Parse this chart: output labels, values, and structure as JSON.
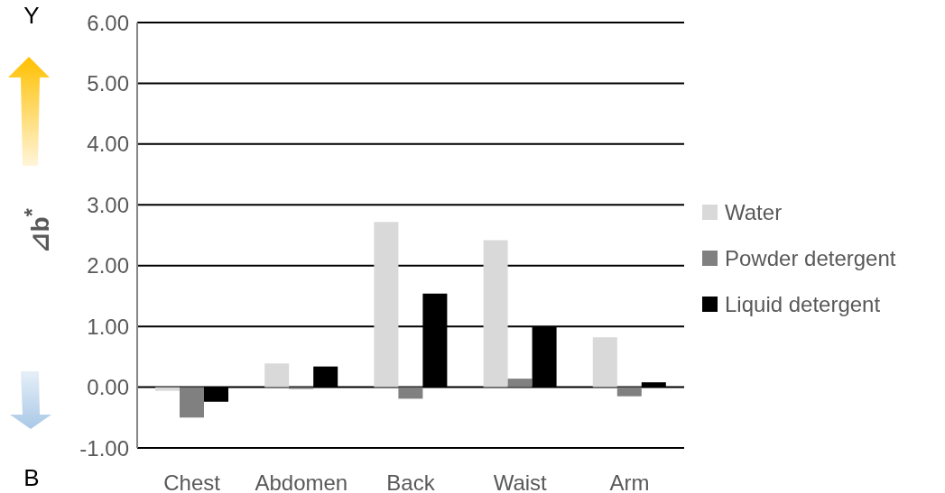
{
  "chart_data": {
    "type": "bar",
    "ylabel": "⊿b$^{*}$",
    "annotations": [
      "Y",
      "B"
    ],
    "categories": [
      "Chest",
      "Abdomen",
      "Back",
      "Waist",
      "Arm"
    ],
    "series": [
      {
        "name": "Water",
        "color": "#d9d9d9",
        "values": [
          -0.06,
          0.39,
          2.72,
          2.42,
          0.82
        ]
      },
      {
        "name": "Powder detergent",
        "color": "#808080",
        "values": [
          -0.5,
          -0.03,
          -0.19,
          0.14,
          -0.15
        ]
      },
      {
        "name": "Liquid detergent",
        "color": "#000000",
        "values": [
          -0.24,
          0.34,
          1.54,
          1.0,
          0.08
        ]
      }
    ],
    "ylim": [
      -1,
      6
    ],
    "yticks": [
      {
        "value": -1,
        "label": "-1.00"
      },
      {
        "value": 0,
        "label": "0.00"
      },
      {
        "value": 1,
        "label": "1.00"
      },
      {
        "value": 2,
        "label": "2.00"
      },
      {
        "value": 3,
        "label": "3.00"
      },
      {
        "value": 4,
        "label": "4.00"
      },
      {
        "value": 5,
        "label": "5.00"
      },
      {
        "value": 6,
        "label": "6.00"
      }
    ],
    "grid": "y",
    "legend": "right"
  }
}
